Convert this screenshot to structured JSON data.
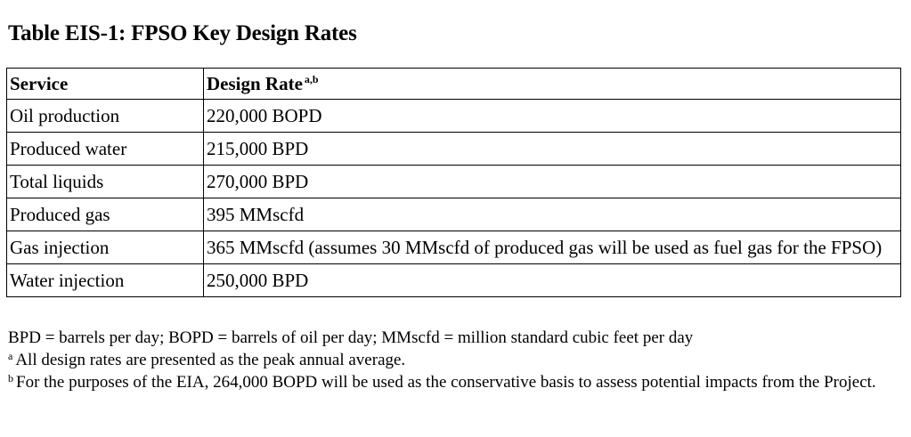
{
  "title": "Table EIS-1: FPSO Key Design Rates",
  "table": {
    "headers": {
      "service": "Service",
      "design_rate": "Design Rate",
      "design_rate_sup": "a,b"
    },
    "rows": [
      {
        "service": "Oil production",
        "rate": "220,000 BOPD"
      },
      {
        "service": "Produced water",
        "rate": "215,000 BPD"
      },
      {
        "service": "Total liquids",
        "rate": "270,000 BPD"
      },
      {
        "service": "Produced gas",
        "rate": "395 MMscfd"
      },
      {
        "service": "Gas injection",
        "rate": "365 MMscfd (assumes 30 MMscfd of produced gas will be used as fuel gas for the FPSO)"
      },
      {
        "service": "Water injection",
        "rate": "250,000 BPD"
      }
    ]
  },
  "notes": {
    "abbreviations": "BPD = barrels per day; BOPD = barrels of oil per day; MMscfd = million standard cubic feet per day",
    "footnote_a_marker": "a",
    "footnote_a": "All design rates are presented as the peak annual average.",
    "footnote_b_marker": "b",
    "footnote_b": "For the purposes of the EIA, 264,000 BOPD will be used as the conservative basis to assess potential impacts from the Project."
  }
}
